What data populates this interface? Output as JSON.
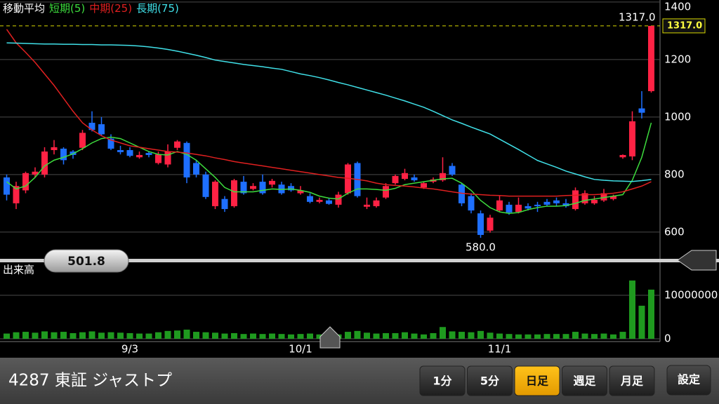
{
  "chart_data": [
    {
      "type": "candlestick",
      "legend_title": "移動平均",
      "categories": [
        null,
        null,
        null,
        null,
        null,
        null,
        null,
        null,
        null,
        null,
        null,
        null,
        null,
        "9/3",
        null,
        null,
        null,
        null,
        null,
        null,
        null,
        null,
        null,
        null,
        null,
        null,
        null,
        null,
        null,
        null,
        null,
        "10/1",
        null,
        null,
        null,
        null,
        null,
        null,
        null,
        null,
        null,
        null,
        null,
        null,
        null,
        null,
        null,
        null,
        null,
        null,
        null,
        null,
        "11/1",
        null,
        null,
        null,
        null,
        null,
        null,
        null,
        null,
        null,
        null,
        null,
        null,
        null,
        null,
        null,
        null
      ],
      "open": [
        790,
        700,
        745,
        800,
        800,
        885,
        890,
        880,
        893,
        980,
        975,
        925,
        885,
        885,
        860,
        875,
        840,
        835,
        893,
        910,
        840,
        800,
        690,
        715,
        690,
        775,
        750,
        775,
        765,
        765,
        760,
        735,
        725,
        705,
        710,
        695,
        735,
        840,
        688,
        690,
        720,
        770,
        785,
        790,
        755,
        775,
        780,
        830,
        765,
        725,
        665,
        605,
        675,
        695,
        670,
        690,
        695,
        705,
        710,
        700,
        680,
        700,
        700,
        710,
        715,
        860,
        863,
        1030,
        1090
      ],
      "high": [
        800,
        775,
        810,
        825,
        895,
        920,
        895,
        885,
        955,
        1020,
        1000,
        940,
        900,
        895,
        880,
        880,
        880,
        905,
        920,
        915,
        850,
        810,
        780,
        725,
        785,
        795,
        770,
        800,
        785,
        775,
        770,
        760,
        735,
        720,
        718,
        740,
        840,
        845,
        720,
        720,
        770,
        800,
        820,
        800,
        775,
        790,
        860,
        840,
        770,
        735,
        675,
        660,
        725,
        705,
        720,
        700,
        705,
        715,
        720,
        715,
        755,
        745,
        725,
        750,
        730,
        870,
        1020,
        1090,
        1317
      ],
      "low": [
        710,
        680,
        735,
        790,
        790,
        870,
        835,
        855,
        885,
        950,
        935,
        885,
        870,
        860,
        855,
        860,
        835,
        825,
        885,
        770,
        790,
        715,
        680,
        670,
        685,
        730,
        745,
        730,
        755,
        730,
        740,
        730,
        700,
        700,
        695,
        685,
        730,
        720,
        680,
        685,
        715,
        765,
        780,
        775,
        750,
        770,
        775,
        795,
        690,
        665,
        580,
        598,
        670,
        660,
        665,
        675,
        670,
        690,
        690,
        685,
        675,
        695,
        695,
        705,
        710,
        855,
        850,
        995,
        1085
      ],
      "close": [
        730,
        760,
        805,
        810,
        880,
        895,
        850,
        868,
        945,
        955,
        940,
        890,
        878,
        865,
        868,
        868,
        870,
        880,
        915,
        790,
        800,
        722,
        775,
        680,
        780,
        735,
        760,
        735,
        778,
        735,
        745,
        745,
        705,
        712,
        698,
        730,
        835,
        725,
        695,
        710,
        760,
        795,
        805,
        780,
        770,
        783,
        805,
        800,
        700,
        675,
        590,
        650,
        710,
        668,
        695,
        682,
        690,
        695,
        700,
        690,
        745,
        735,
        712,
        735,
        725,
        868,
        985,
        1015,
        1317
      ],
      "up_color": "#ff2244",
      "down_color": "#1e6fff",
      "series": [
        {
          "name": "短期(5)",
          "color": "#3ddc3d",
          "values": [
            775,
            750,
            760,
            790,
            830,
            850,
            860,
            872,
            890,
            910,
            925,
            930,
            925,
            910,
            895,
            880,
            870,
            868,
            880,
            870,
            850,
            820,
            790,
            755,
            740,
            740,
            740,
            745,
            750,
            748,
            750,
            745,
            738,
            725,
            718,
            715,
            735,
            750,
            750,
            748,
            745,
            752,
            765,
            770,
            775,
            780,
            785,
            787,
            770,
            745,
            710,
            685,
            670,
            665,
            668,
            678,
            685,
            690,
            690,
            692,
            700,
            710,
            715,
            720,
            725,
            730,
            780,
            860,
            980
          ]
        },
        {
          "name": "中期(25)",
          "color": "#e02020",
          "values": [
            1305,
            1258,
            1225,
            1190,
            1150,
            1110,
            1065,
            1020,
            980,
            955,
            935,
            920,
            910,
            900,
            895,
            890,
            885,
            880,
            878,
            875,
            870,
            865,
            858,
            852,
            845,
            840,
            835,
            830,
            825,
            820,
            815,
            810,
            805,
            800,
            795,
            790,
            787,
            783,
            778,
            770,
            765,
            762,
            760,
            757,
            753,
            750,
            745,
            740,
            735,
            732,
            730,
            728,
            727,
            725,
            725,
            725,
            725,
            725,
            725,
            727,
            728,
            730,
            730,
            732,
            735,
            740,
            750,
            760,
            775
          ]
        },
        {
          "name": "長期(75)",
          "color": "#40e0e8",
          "values": [
            1258,
            1257,
            1256,
            1255,
            1254,
            1254,
            1253,
            1253,
            1252,
            1252,
            1251,
            1251,
            1250,
            1249,
            1247,
            1244,
            1240,
            1235,
            1229,
            1222,
            1215,
            1207,
            1198,
            1193,
            1188,
            1183,
            1179,
            1175,
            1170,
            1166,
            1158,
            1150,
            1144,
            1137,
            1129,
            1120,
            1112,
            1103,
            1094,
            1085,
            1076,
            1066,
            1056,
            1045,
            1034,
            1020,
            1005,
            990,
            978,
            965,
            953,
            941,
            923,
            905,
            887,
            868,
            849,
            837,
            825,
            812,
            802,
            792,
            783,
            780,
            778,
            777,
            776,
            779,
            783
          ]
        }
      ],
      "ylim": [
        524,
        1407
      ],
      "yticks": [
        600,
        800,
        1000,
        1200,
        1400
      ],
      "grid": true,
      "high_label": {
        "value": 1317,
        "label": "1317.0"
      },
      "low_label": {
        "value": 580,
        "label": "580.0"
      },
      "last_price": {
        "value": 1317,
        "label": "1317.0"
      }
    },
    {
      "type": "bar",
      "title": "出来高",
      "color": "#1f9a1f",
      "values": [
        1200000,
        1500000,
        1600000,
        1400000,
        1700000,
        1500000,
        1600000,
        1300000,
        1500000,
        1700000,
        1400000,
        1500000,
        1400000,
        1300000,
        1200000,
        1200000,
        1500000,
        1800000,
        1900000,
        2100000,
        1600000,
        1500000,
        1400000,
        1200000,
        1300000,
        1100000,
        1200000,
        1100000,
        1200000,
        1100000,
        1000000,
        1100000,
        1200000,
        1000000,
        900000,
        1000000,
        1600000,
        1800000,
        1400000,
        1200000,
        1300000,
        1300000,
        1500000,
        1200000,
        1000000,
        1300000,
        2700000,
        1700000,
        1600000,
        1500000,
        1800000,
        1400000,
        1200000,
        1100000,
        1000000,
        1000000,
        1000000,
        1100000,
        1100000,
        1100000,
        1600000,
        1200000,
        1100000,
        1200000,
        1000000,
        1600000,
        13400000,
        7600000,
        11300000
      ],
      "ylim": [
        0,
        15000000
      ],
      "yticks": [
        0,
        10000000
      ]
    }
  ],
  "slider": {
    "label": "501.8"
  },
  "toolbar": {
    "symbol": "4287 東証 ジャストプ",
    "periods": [
      "1分",
      "5分",
      "日足",
      "週足",
      "月足"
    ],
    "active_period": 2,
    "settings": "設定"
  }
}
